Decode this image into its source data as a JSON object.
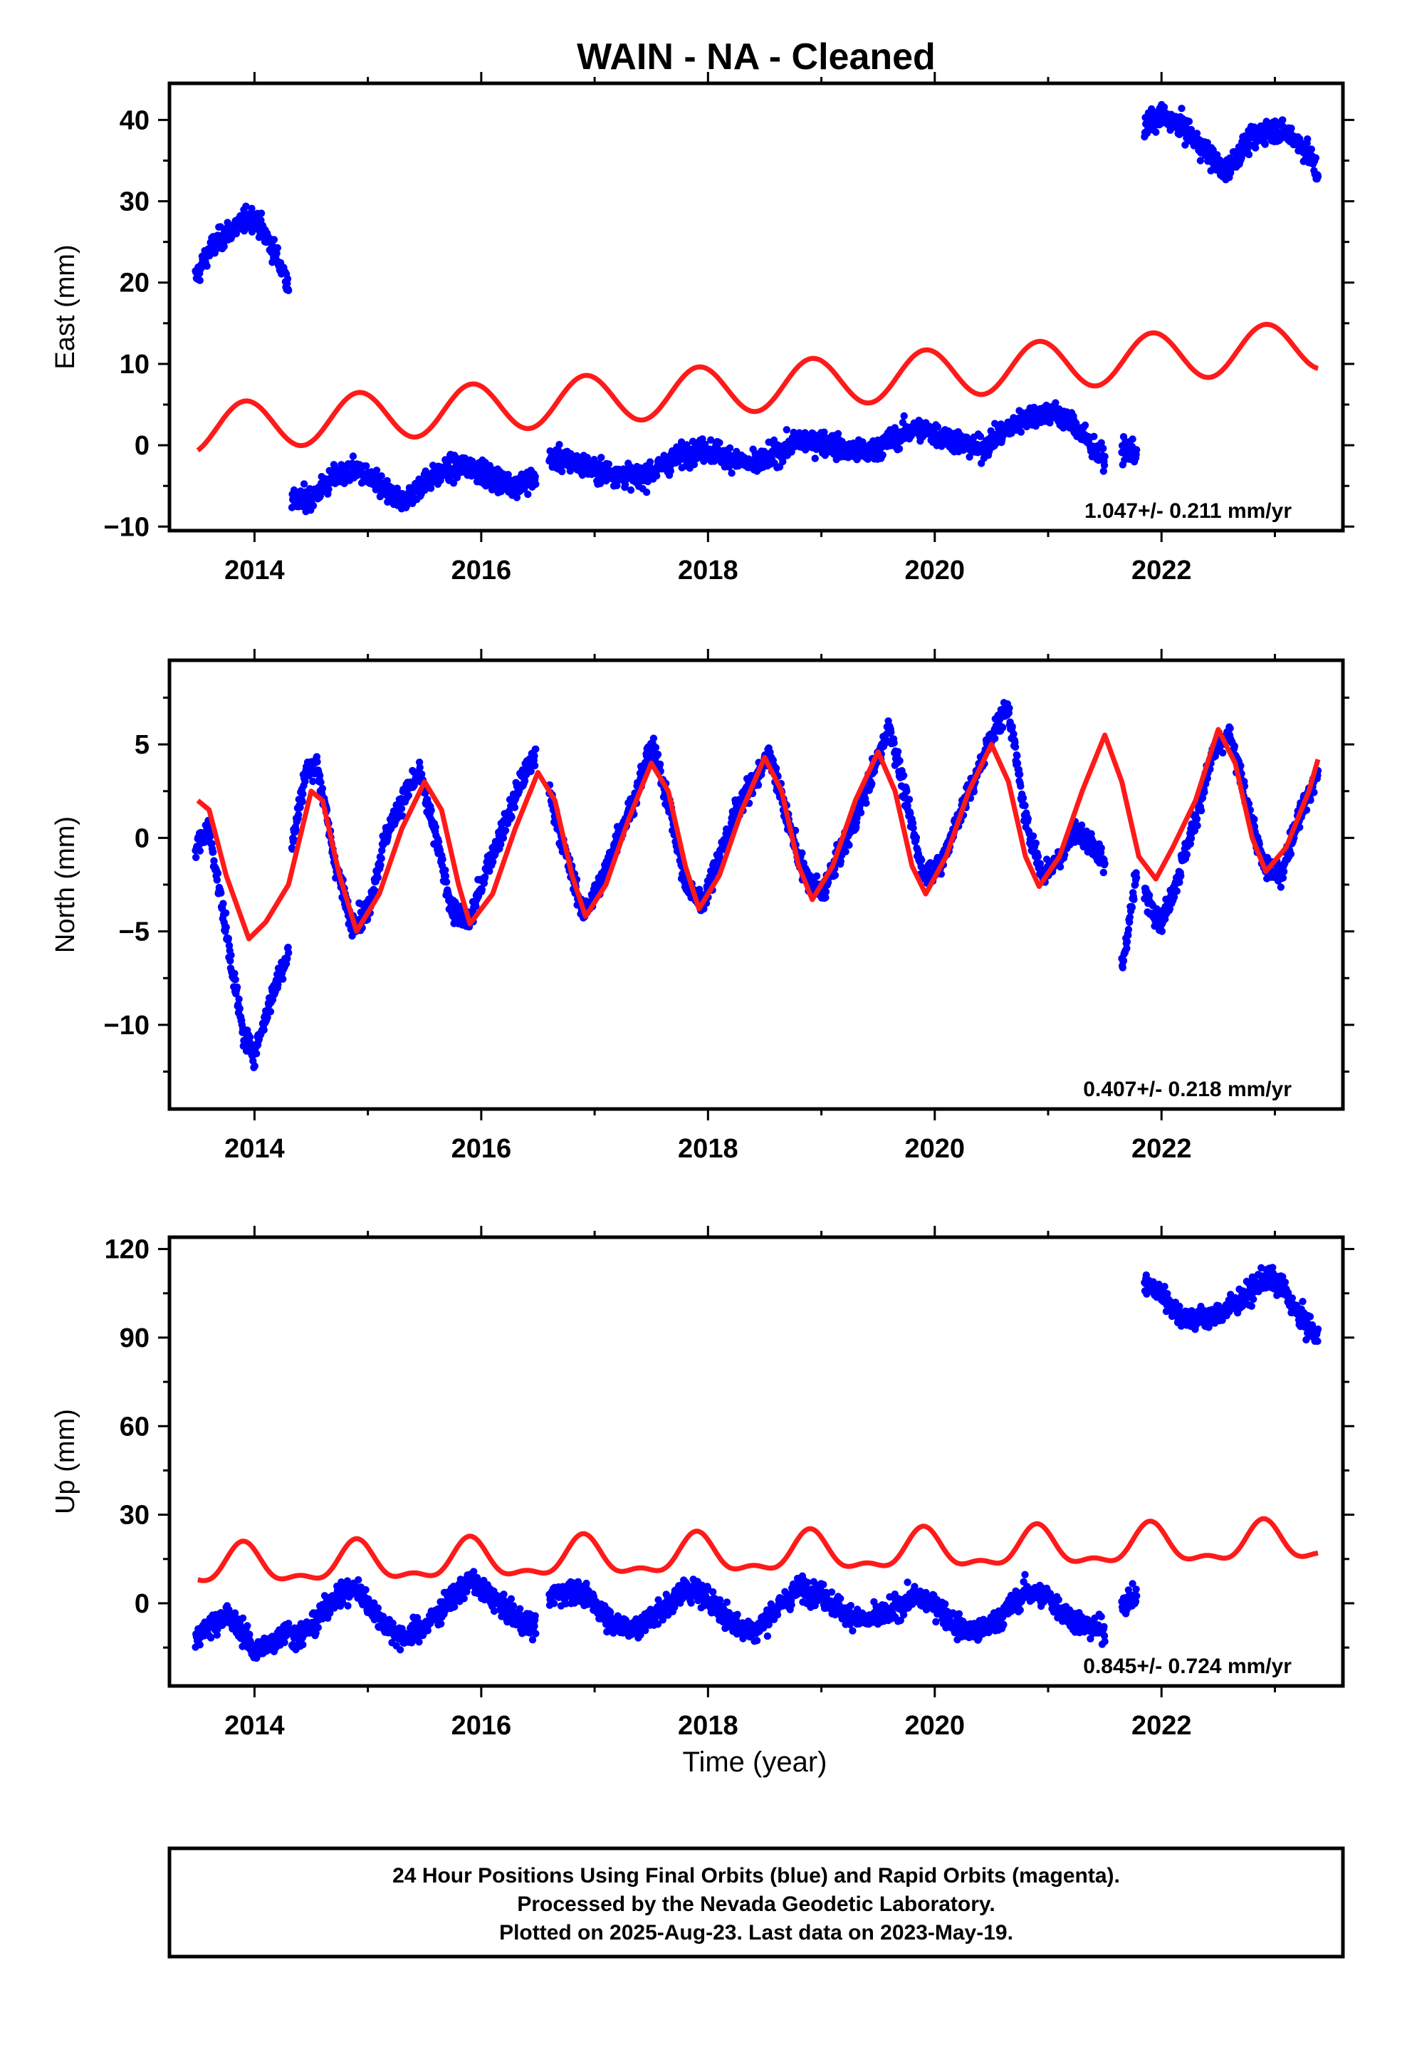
{
  "title": "WAIN  - NA - Cleaned",
  "footer": {
    "lines": [
      "24 Hour Positions Using Final Orbits (blue) and Rapid Orbits (magenta).",
      "Processed by the Nevada Geodetic Laboratory.",
      "Plotted on 2025-Aug-23. Last data on 2023-May-19."
    ]
  },
  "colors": {
    "data": "#0000ff",
    "model": "#ff1a1a",
    "frame": "#000000"
  },
  "chart_data": [
    {
      "type": "scatter",
      "ylabel": "East (mm)",
      "xlim": [
        2013.25,
        2023.6
      ],
      "ylim": [
        -10.5,
        44.5
      ],
      "xticks": [
        2014,
        2016,
        2018,
        2020,
        2022
      ],
      "yticks": [
        -10,
        0,
        10,
        20,
        30,
        40
      ],
      "rate_label": "1.047+/- 0.211 mm/yr",
      "series": [
        {
          "role": "data",
          "color": "#0000ff",
          "segments": [
            {
              "x": [
                2013.48,
                2013.6,
                2013.75,
                2013.9,
                2014.0,
                2014.15,
                2014.3
              ],
              "y": [
                20.5,
                24.0,
                26.0,
                27.5,
                28.0,
                24.5,
                20.0
              ]
            },
            {
              "x": [
                2014.33,
                2014.5,
                2014.7,
                2014.9,
                2015.1,
                2015.3,
                2015.5,
                2015.7,
                2015.9,
                2016.1,
                2016.3,
                2016.48
              ],
              "y": [
                -7.0,
                -6.5,
                -4.0,
                -3.0,
                -5.0,
                -7.0,
                -4.5,
                -3.0,
                -2.5,
                -4.0,
                -5.0,
                -4.0
              ]
            },
            {
              "x": [
                2016.6,
                2016.8,
                2017.0,
                2017.2,
                2017.4,
                2017.6,
                2017.8,
                2018.0,
                2018.2,
                2018.4,
                2018.6,
                2018.8,
                2019.0,
                2019.2,
                2019.4,
                2019.6,
                2019.8,
                2020.0,
                2020.2,
                2020.4,
                2020.6,
                2020.8,
                2021.0,
                2021.2,
                2021.35,
                2021.5
              ],
              "y": [
                -1.5,
                -2.0,
                -3.0,
                -3.5,
                -4.0,
                -2.5,
                -1.0,
                -0.5,
                -1.5,
                -2.5,
                -1.0,
                0.5,
                0.5,
                -0.5,
                -1.0,
                0.5,
                2.0,
                1.5,
                0.5,
                -0.5,
                1.5,
                3.5,
                4.0,
                3.0,
                0.5,
                -2.0
              ]
            },
            {
              "x": [
                2021.65,
                2021.78
              ],
              "y": [
                -0.5,
                -1.0
              ]
            },
            {
              "x": [
                2021.85,
                2022.0,
                2022.2,
                2022.4,
                2022.55,
                2022.75,
                2022.95,
                2023.15,
                2023.3,
                2023.38
              ],
              "y": [
                39.0,
                40.5,
                39.0,
                36.0,
                33.5,
                37.0,
                39.0,
                38.0,
                36.0,
                33.0
              ]
            }
          ]
        },
        {
          "role": "model",
          "color": "#ff1a1a",
          "model": {
            "x0": 2013.5,
            "x1": 2023.38,
            "y0": 2.0,
            "rate": 1.047,
            "amp": 3.0,
            "phase_peak": 0.92
          }
        }
      ]
    },
    {
      "type": "scatter",
      "ylabel": "North (mm)",
      "xlim": [
        2013.25,
        2023.6
      ],
      "ylim": [
        -14.5,
        9.5
      ],
      "xticks": [
        2014,
        2016,
        2018,
        2020,
        2022
      ],
      "yticks": [
        -10,
        -5,
        0,
        5
      ],
      "rate_label": "0.407+/- 0.218 mm/yr",
      "series": [
        {
          "role": "data",
          "color": "#0000ff",
          "segments": [
            {
              "x": [
                2013.48,
                2013.6,
                2013.75,
                2013.9,
                2014.0,
                2014.15,
                2014.3
              ],
              "y": [
                -0.5,
                0.5,
                -5.0,
                -10.5,
                -11.5,
                -8.5,
                -6.0
              ]
            },
            {
              "x": [
                2014.33,
                2014.45,
                2014.55,
                2014.7,
                2014.85,
                2015.0,
                2015.15,
                2015.3,
                2015.45,
                2015.6,
                2015.75,
                2015.9,
                2016.05,
                2016.2,
                2016.35,
                2016.48
              ],
              "y": [
                -0.5,
                3.5,
                4.0,
                -1.0,
                -4.5,
                -4.0,
                0.0,
                2.0,
                3.5,
                0.0,
                -4.0,
                -4.5,
                -1.5,
                0.5,
                3.0,
                4.5
              ]
            },
            {
              "x": [
                2016.6,
                2016.75,
                2016.9,
                2017.05,
                2017.2,
                2017.35,
                2017.5,
                2017.65,
                2017.8,
                2017.95,
                2018.1,
                2018.25,
                2018.4,
                2018.55,
                2018.7,
                2018.85,
                2019.0,
                2019.15,
                2019.3,
                2019.45,
                2019.6,
                2019.75,
                2019.9,
                2020.05,
                2020.2,
                2020.35,
                2020.5,
                2020.65,
                2020.8,
                2020.95,
                2021.1,
                2021.25,
                2021.4,
                2021.5
              ],
              "y": [
                2.5,
                -1.0,
                -4.0,
                -2.5,
                0.0,
                2.0,
                5.0,
                2.0,
                -2.5,
                -3.5,
                -1.0,
                1.5,
                3.0,
                4.5,
                1.0,
                -2.0,
                -3.0,
                -1.0,
                1.0,
                3.5,
                6.0,
                2.0,
                -2.0,
                -1.5,
                1.0,
                3.0,
                5.5,
                7.0,
                1.0,
                -2.0,
                -1.0,
                0.5,
                -0.5,
                -1.5
              ]
            },
            {
              "x": [
                2021.65,
                2021.78
              ],
              "y": [
                -7.0,
                -2.0
              ]
            },
            {
              "x": [
                2021.85,
                2022.0,
                2022.15,
                2022.3,
                2022.45,
                2022.6,
                2022.75,
                2022.9,
                2023.05,
                2023.2,
                2023.38
              ],
              "y": [
                -3.0,
                -4.5,
                -2.0,
                1.0,
                4.5,
                5.5,
                2.0,
                -1.5,
                -2.0,
                1.0,
                3.5
              ]
            }
          ]
        },
        {
          "role": "model",
          "color": "#ff1a1a",
          "x": [
            2013.5,
            2013.6,
            2013.75,
            2013.95,
            2014.1,
            2014.3,
            2014.5,
            2014.6,
            2014.75,
            2014.9,
            2015.1,
            2015.3,
            2015.5,
            2015.65,
            2015.8,
            2015.9,
            2016.1,
            2016.3,
            2016.5,
            2016.65,
            2016.8,
            2016.92,
            2017.1,
            2017.3,
            2017.5,
            2017.65,
            2017.8,
            2017.92,
            2018.1,
            2018.3,
            2018.5,
            2018.65,
            2018.8,
            2018.92,
            2019.1,
            2019.3,
            2019.5,
            2019.65,
            2019.8,
            2019.92,
            2020.1,
            2020.3,
            2020.5,
            2020.65,
            2020.8,
            2020.92,
            2021.1,
            2021.3,
            2021.5,
            2021.65,
            2021.8,
            2021.95,
            2022.1,
            2022.3,
            2022.5,
            2022.65,
            2022.8,
            2022.92,
            2023.1,
            2023.3,
            2023.38
          ],
          "y": [
            2.0,
            1.5,
            -2.0,
            -5.4,
            -4.5,
            -2.5,
            2.5,
            2.0,
            -2.0,
            -5.0,
            -3.0,
            0.5,
            3.0,
            1.5,
            -2.5,
            -4.6,
            -3.0,
            0.5,
            3.5,
            2.0,
            -2.0,
            -4.2,
            -2.5,
            1.0,
            4.0,
            2.5,
            -1.5,
            -3.8,
            -2.0,
            1.5,
            4.3,
            2.5,
            -1.5,
            -3.3,
            -1.5,
            2.0,
            4.6,
            2.5,
            -1.5,
            -3.0,
            -1.0,
            2.5,
            5.0,
            3.0,
            -1.0,
            -2.6,
            -1.0,
            2.5,
            5.5,
            3.0,
            -1.0,
            -2.2,
            -0.5,
            2.0,
            5.8,
            4.0,
            0.0,
            -1.8,
            -0.5,
            2.5,
            4.2
          ]
        }
      ]
    },
    {
      "type": "scatter",
      "ylabel": "Up (mm)",
      "xlabel": "Time (year)",
      "xlim": [
        2013.25,
        2023.6
      ],
      "ylim": [
        -28,
        124
      ],
      "xticks": [
        2014,
        2016,
        2018,
        2020,
        2022
      ],
      "yticks": [
        0,
        30,
        60,
        90,
        120
      ],
      "rate_label": "0.845+/- 0.724 mm/yr",
      "series": [
        {
          "role": "data",
          "color": "#0000ff",
          "segments": [
            {
              "x": [
                2013.48,
                2013.6,
                2013.75,
                2013.9,
                2014.0,
                2014.15,
                2014.3
              ],
              "y": [
                -12.0,
                -8.0,
                -4.0,
                -10.0,
                -16.0,
                -14.0,
                -8.0
              ]
            },
            {
              "x": [
                2014.33,
                2014.5,
                2014.7,
                2014.9,
                2015.1,
                2015.3,
                2015.5,
                2015.7,
                2015.9,
                2016.1,
                2016.3,
                2016.48
              ],
              "y": [
                -12.0,
                -8.0,
                2.0,
                5.0,
                -5.0,
                -12.0,
                -8.0,
                0.0,
                8.0,
                2.0,
                -5.0,
                -8.0
              ]
            },
            {
              "x": [
                2016.6,
                2016.8,
                2017.0,
                2017.2,
                2017.4,
                2017.6,
                2017.8,
                2018.0,
                2018.2,
                2018.4,
                2018.6,
                2018.8,
                2019.0,
                2019.2,
                2019.4,
                2019.6,
                2019.8,
                2020.0,
                2020.2,
                2020.4,
                2020.6,
                2020.8,
                2021.0,
                2021.2,
                2021.35,
                2021.5
              ],
              "y": [
                2.0,
                5.0,
                0.0,
                -8.0,
                -8.0,
                -2.0,
                5.0,
                2.0,
                -6.0,
                -10.0,
                -2.0,
                5.0,
                3.0,
                -3.0,
                -6.0,
                -3.0,
                2.0,
                0.0,
                -8.0,
                -10.0,
                -4.0,
                4.0,
                2.0,
                -5.0,
                -8.0,
                -9.0
              ]
            },
            {
              "x": [
                2021.65,
                2021.78
              ],
              "y": [
                0.0,
                2.0
              ]
            },
            {
              "x": [
                2021.85,
                2022.0,
                2022.15,
                2022.3,
                2022.45,
                2022.6,
                2022.75,
                2022.9,
                2023.05,
                2023.2,
                2023.38
              ],
              "y": [
                108.0,
                105.0,
                98.0,
                96.0,
                97.0,
                100.0,
                104.0,
                110.0,
                108.0,
                98.0,
                90.0
              ]
            }
          ]
        },
        {
          "role": "model",
          "color": "#ff1a1a",
          "model": {
            "x0": 2013.5,
            "x1": 2023.38,
            "y0": 12.0,
            "rate": 0.845,
            "amp": 6.0,
            "phase_peak": 0.9,
            "harmonic": true
          }
        }
      ]
    }
  ]
}
